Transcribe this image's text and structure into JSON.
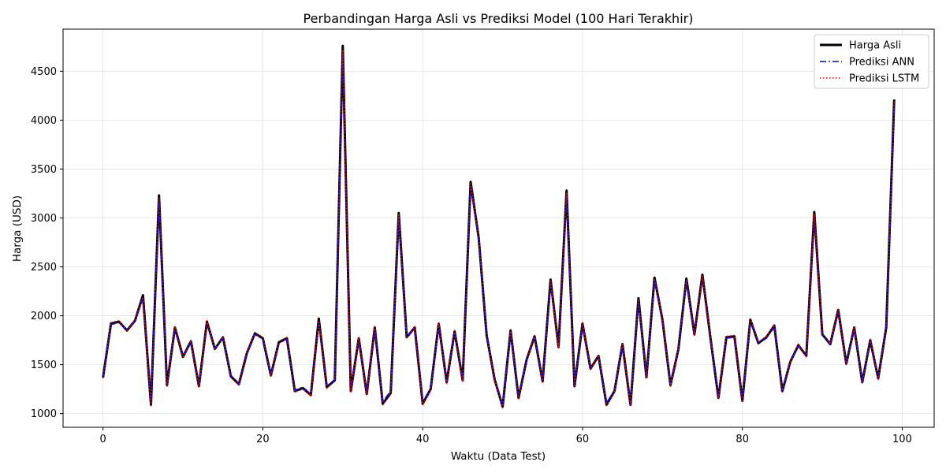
{
  "chart_data": {
    "type": "line",
    "title": "Perbandingan Harga Asli vs Prediksi Model (100 Hari Terakhir)",
    "xlabel": "Waktu (Data Test)",
    "ylabel": "Harga (USD)",
    "xlim": [
      -5,
      104
    ],
    "ylim": [
      860,
      4930
    ],
    "xticks": [
      0,
      20,
      40,
      60,
      80,
      100
    ],
    "yticks": [
      1000,
      1500,
      2000,
      2500,
      3000,
      3500,
      4000,
      4500
    ],
    "grid": true,
    "legend_position": "top-right",
    "x": [
      0,
      1,
      2,
      3,
      4,
      5,
      6,
      7,
      8,
      9,
      10,
      11,
      12,
      13,
      14,
      15,
      16,
      17,
      18,
      19,
      20,
      21,
      22,
      23,
      24,
      25,
      26,
      27,
      28,
      29,
      30,
      31,
      32,
      33,
      34,
      35,
      36,
      37,
      38,
      39,
      40,
      41,
      42,
      43,
      44,
      45,
      46,
      47,
      48,
      49,
      50,
      51,
      52,
      53,
      54,
      55,
      56,
      57,
      58,
      59,
      60,
      61,
      62,
      63,
      64,
      65,
      66,
      67,
      68,
      69,
      70,
      71,
      72,
      73,
      74,
      75,
      76,
      77,
      78,
      79,
      80,
      81,
      82,
      83,
      84,
      85,
      86,
      87,
      88,
      89,
      90,
      91,
      92,
      93,
      94,
      95,
      96,
      97,
      98,
      99
    ],
    "series": [
      {
        "name": "Harga Asli",
        "color": "#000000",
        "style": "solid",
        "values": [
          1370,
          1920,
          1940,
          1850,
          1950,
          2210,
          1090,
          3230,
          1290,
          1880,
          1580,
          1740,
          1280,
          1940,
          1660,
          1780,
          1380,
          1300,
          1620,
          1820,
          1770,
          1390,
          1730,
          1770,
          1230,
          1260,
          1190,
          1970,
          1270,
          1340,
          4760,
          1230,
          1770,
          1200,
          1880,
          1100,
          1210,
          3050,
          1780,
          1880,
          1100,
          1250,
          1920,
          1320,
          1840,
          1340,
          3370,
          2800,
          1800,
          1350,
          1070,
          1850,
          1160,
          1550,
          1790,
          1330,
          2370,
          1680,
          3280,
          1280,
          1920,
          1460,
          1590,
          1090,
          1230,
          1710,
          1090,
          2180,
          1370,
          2390,
          1960,
          1290,
          1660,
          2380,
          1810,
          2420,
          1780,
          1160,
          1780,
          1790,
          1130,
          1960,
          1720,
          1780,
          1900,
          1230,
          1530,
          1700,
          1590,
          3060,
          1810,
          1710,
          2060,
          1510,
          1880,
          1320,
          1750,
          1360,
          1880,
          4210
        ]
      },
      {
        "name": "Prediksi ANN",
        "color": "#0000ff",
        "style": "dashdot",
        "values": [
          1380,
          1910,
          1930,
          1860,
          1940,
          2180,
          1120,
          3180,
          1310,
          1860,
          1590,
          1730,
          1300,
          1920,
          1670,
          1770,
          1390,
          1310,
          1610,
          1810,
          1760,
          1400,
          1720,
          1760,
          1240,
          1270,
          1200,
          1930,
          1280,
          1350,
          4680,
          1250,
          1750,
          1220,
          1860,
          1120,
          1230,
          3000,
          1790,
          1870,
          1120,
          1260,
          1890,
          1330,
          1820,
          1350,
          3320,
          2780,
          1790,
          1360,
          1090,
          1830,
          1180,
          1560,
          1780,
          1340,
          2330,
          1690,
          3220,
          1300,
          1890,
          1470,
          1580,
          1110,
          1240,
          1690,
          1110,
          2140,
          1380,
          2360,
          1950,
          1300,
          1660,
          2350,
          1820,
          2390,
          1770,
          1180,
          1770,
          1780,
          1150,
          1940,
          1720,
          1770,
          1880,
          1240,
          1530,
          1690,
          1600,
          3010,
          1800,
          1710,
          2040,
          1520,
          1860,
          1330,
          1740,
          1370,
          1870,
          4150
        ]
      },
      {
        "name": "Prediksi LSTM",
        "color": "#ff0000",
        "style": "dotted",
        "values": [
          1360,
          1930,
          1950,
          1840,
          1960,
          2190,
          1080,
          3210,
          1280,
          1890,
          1570,
          1750,
          1270,
          1950,
          1650,
          1790,
          1370,
          1290,
          1630,
          1830,
          1780,
          1380,
          1740,
          1780,
          1220,
          1250,
          1180,
          1950,
          1260,
          1330,
          4720,
          1220,
          1780,
          1190,
          1890,
          1090,
          1200,
          3030,
          1770,
          1890,
          1090,
          1240,
          1930,
          1310,
          1850,
          1330,
          3350,
          2810,
          1810,
          1340,
          1060,
          1860,
          1150,
          1540,
          1800,
          1320,
          2350,
          1670,
          3260,
          1270,
          1930,
          1450,
          1600,
          1080,
          1220,
          1720,
          1080,
          2170,
          1360,
          2380,
          1970,
          1280,
          1670,
          2370,
          1800,
          2410,
          1790,
          1150,
          1790,
          1800,
          1120,
          1970,
          1730,
          1790,
          1910,
          1220,
          1540,
          1710,
          1580,
          3040,
          1820,
          1720,
          2070,
          1500,
          1890,
          1310,
          1760,
          1350,
          1890,
          4190
        ]
      }
    ]
  }
}
